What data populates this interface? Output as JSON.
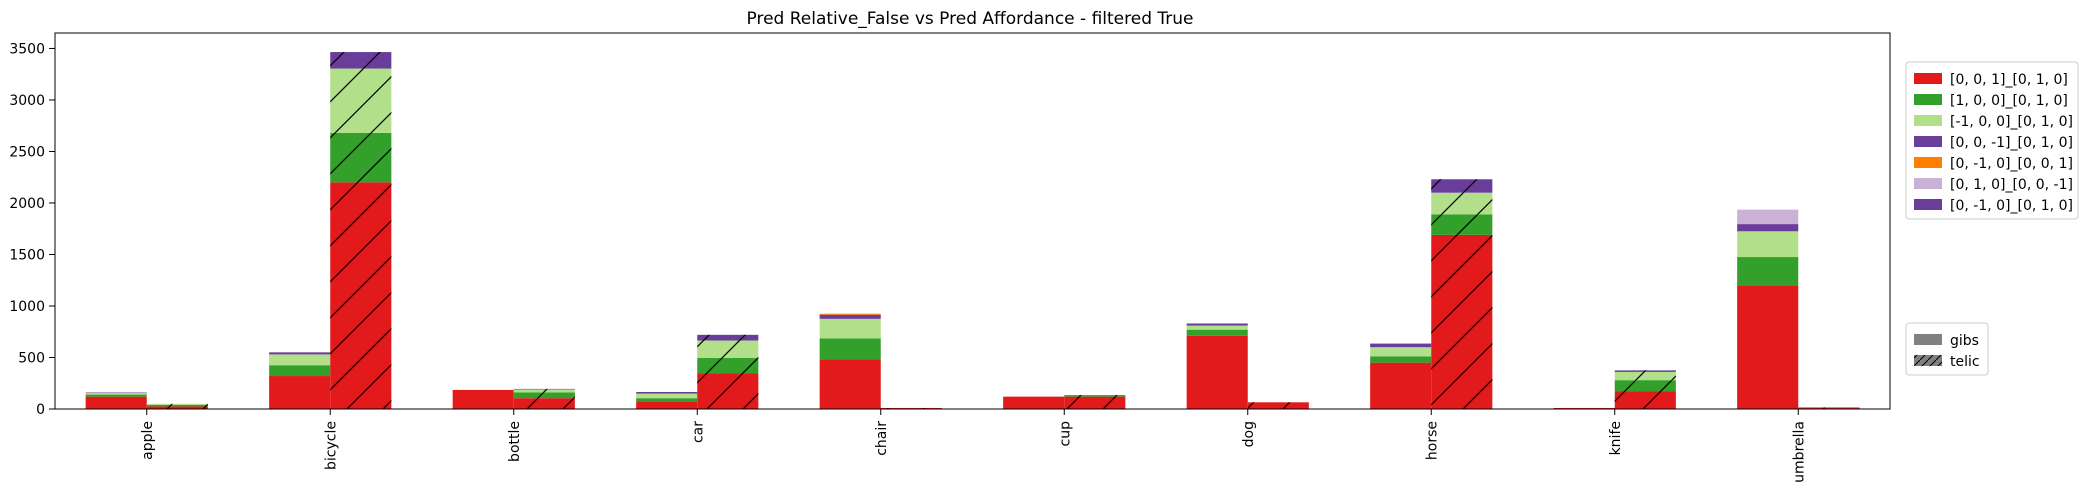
{
  "chart_data": {
    "type": "bar",
    "title": "Pred Relative_False vs Pred Affordance - filtered True",
    "categories": [
      "apple",
      "bicycle",
      "bottle",
      "car",
      "chair",
      "cup",
      "dog",
      "horse",
      "knife",
      "umbrella"
    ],
    "ylim": [
      0,
      3650
    ],
    "yticks": [
      0,
      500,
      1000,
      1500,
      2000,
      2500,
      3000,
      3500
    ],
    "groups": [
      {
        "name": "gibs",
        "color": "#808080",
        "hatch": false
      },
      {
        "name": "telic",
        "color": "#808080",
        "hatch": true
      }
    ],
    "series": [
      {
        "name": "[0, 0, 1]_[0, 1, 0]",
        "color": "#e31a1c",
        "gibs": [
          120,
          320,
          185,
          75,
          480,
          120,
          710,
          450,
          10,
          1200
        ],
        "telic": [
          25,
          2200,
          105,
          345,
          10,
          120,
          65,
          1690,
          170,
          15
        ]
      },
      {
        "name": "[1, 0, 0]_[0, 1, 0]",
        "color": "#33a02c",
        "gibs": [
          20,
          105,
          0,
          30,
          205,
          0,
          60,
          60,
          0,
          275
        ],
        "telic": [
          15,
          480,
          55,
          150,
          0,
          15,
          0,
          200,
          110,
          0
        ]
      },
      {
        "name": "[-1, 0, 0]_[0, 1, 0]",
        "color": "#b2df8a",
        "gibs": [
          15,
          105,
          0,
          45,
          190,
          0,
          40,
          90,
          0,
          250
        ],
        "telic": [
          10,
          625,
          30,
          170,
          0,
          0,
          0,
          210,
          80,
          0
        ]
      },
      {
        "name": "[0, 0, -1]_[0, 1, 0]",
        "color": "#6a3d9a",
        "gibs": [
          5,
          20,
          0,
          15,
          40,
          0,
          20,
          35,
          0,
          70
        ],
        "telic": [
          0,
          160,
          5,
          55,
          0,
          0,
          0,
          130,
          15,
          0
        ]
      },
      {
        "name": "[0, -1, 0]_[0, 0, 1]",
        "color": "#ff7f00",
        "gibs": [
          0,
          0,
          0,
          0,
          10,
          0,
          0,
          0,
          0,
          0
        ],
        "telic": [
          0,
          0,
          0,
          0,
          0,
          0,
          0,
          0,
          0,
          0
        ]
      },
      {
        "name": "[0, 1, 0]_[0, 0, -1]",
        "color": "#cab2d6",
        "gibs": [
          0,
          0,
          0,
          0,
          0,
          0,
          0,
          0,
          0,
          140
        ],
        "telic": [
          0,
          0,
          0,
          0,
          0,
          0,
          0,
          0,
          0,
          0
        ]
      },
      {
        "name": "[0, -1, 0]_[0, 1, 0]",
        "color": "#6a3d9a",
        "gibs": [
          0,
          0,
          0,
          0,
          0,
          0,
          0,
          0,
          0,
          0
        ],
        "telic": [
          0,
          0,
          0,
          0,
          0,
          0,
          0,
          0,
          0,
          0
        ]
      }
    ],
    "legend_placement": "right",
    "grid": false
  }
}
